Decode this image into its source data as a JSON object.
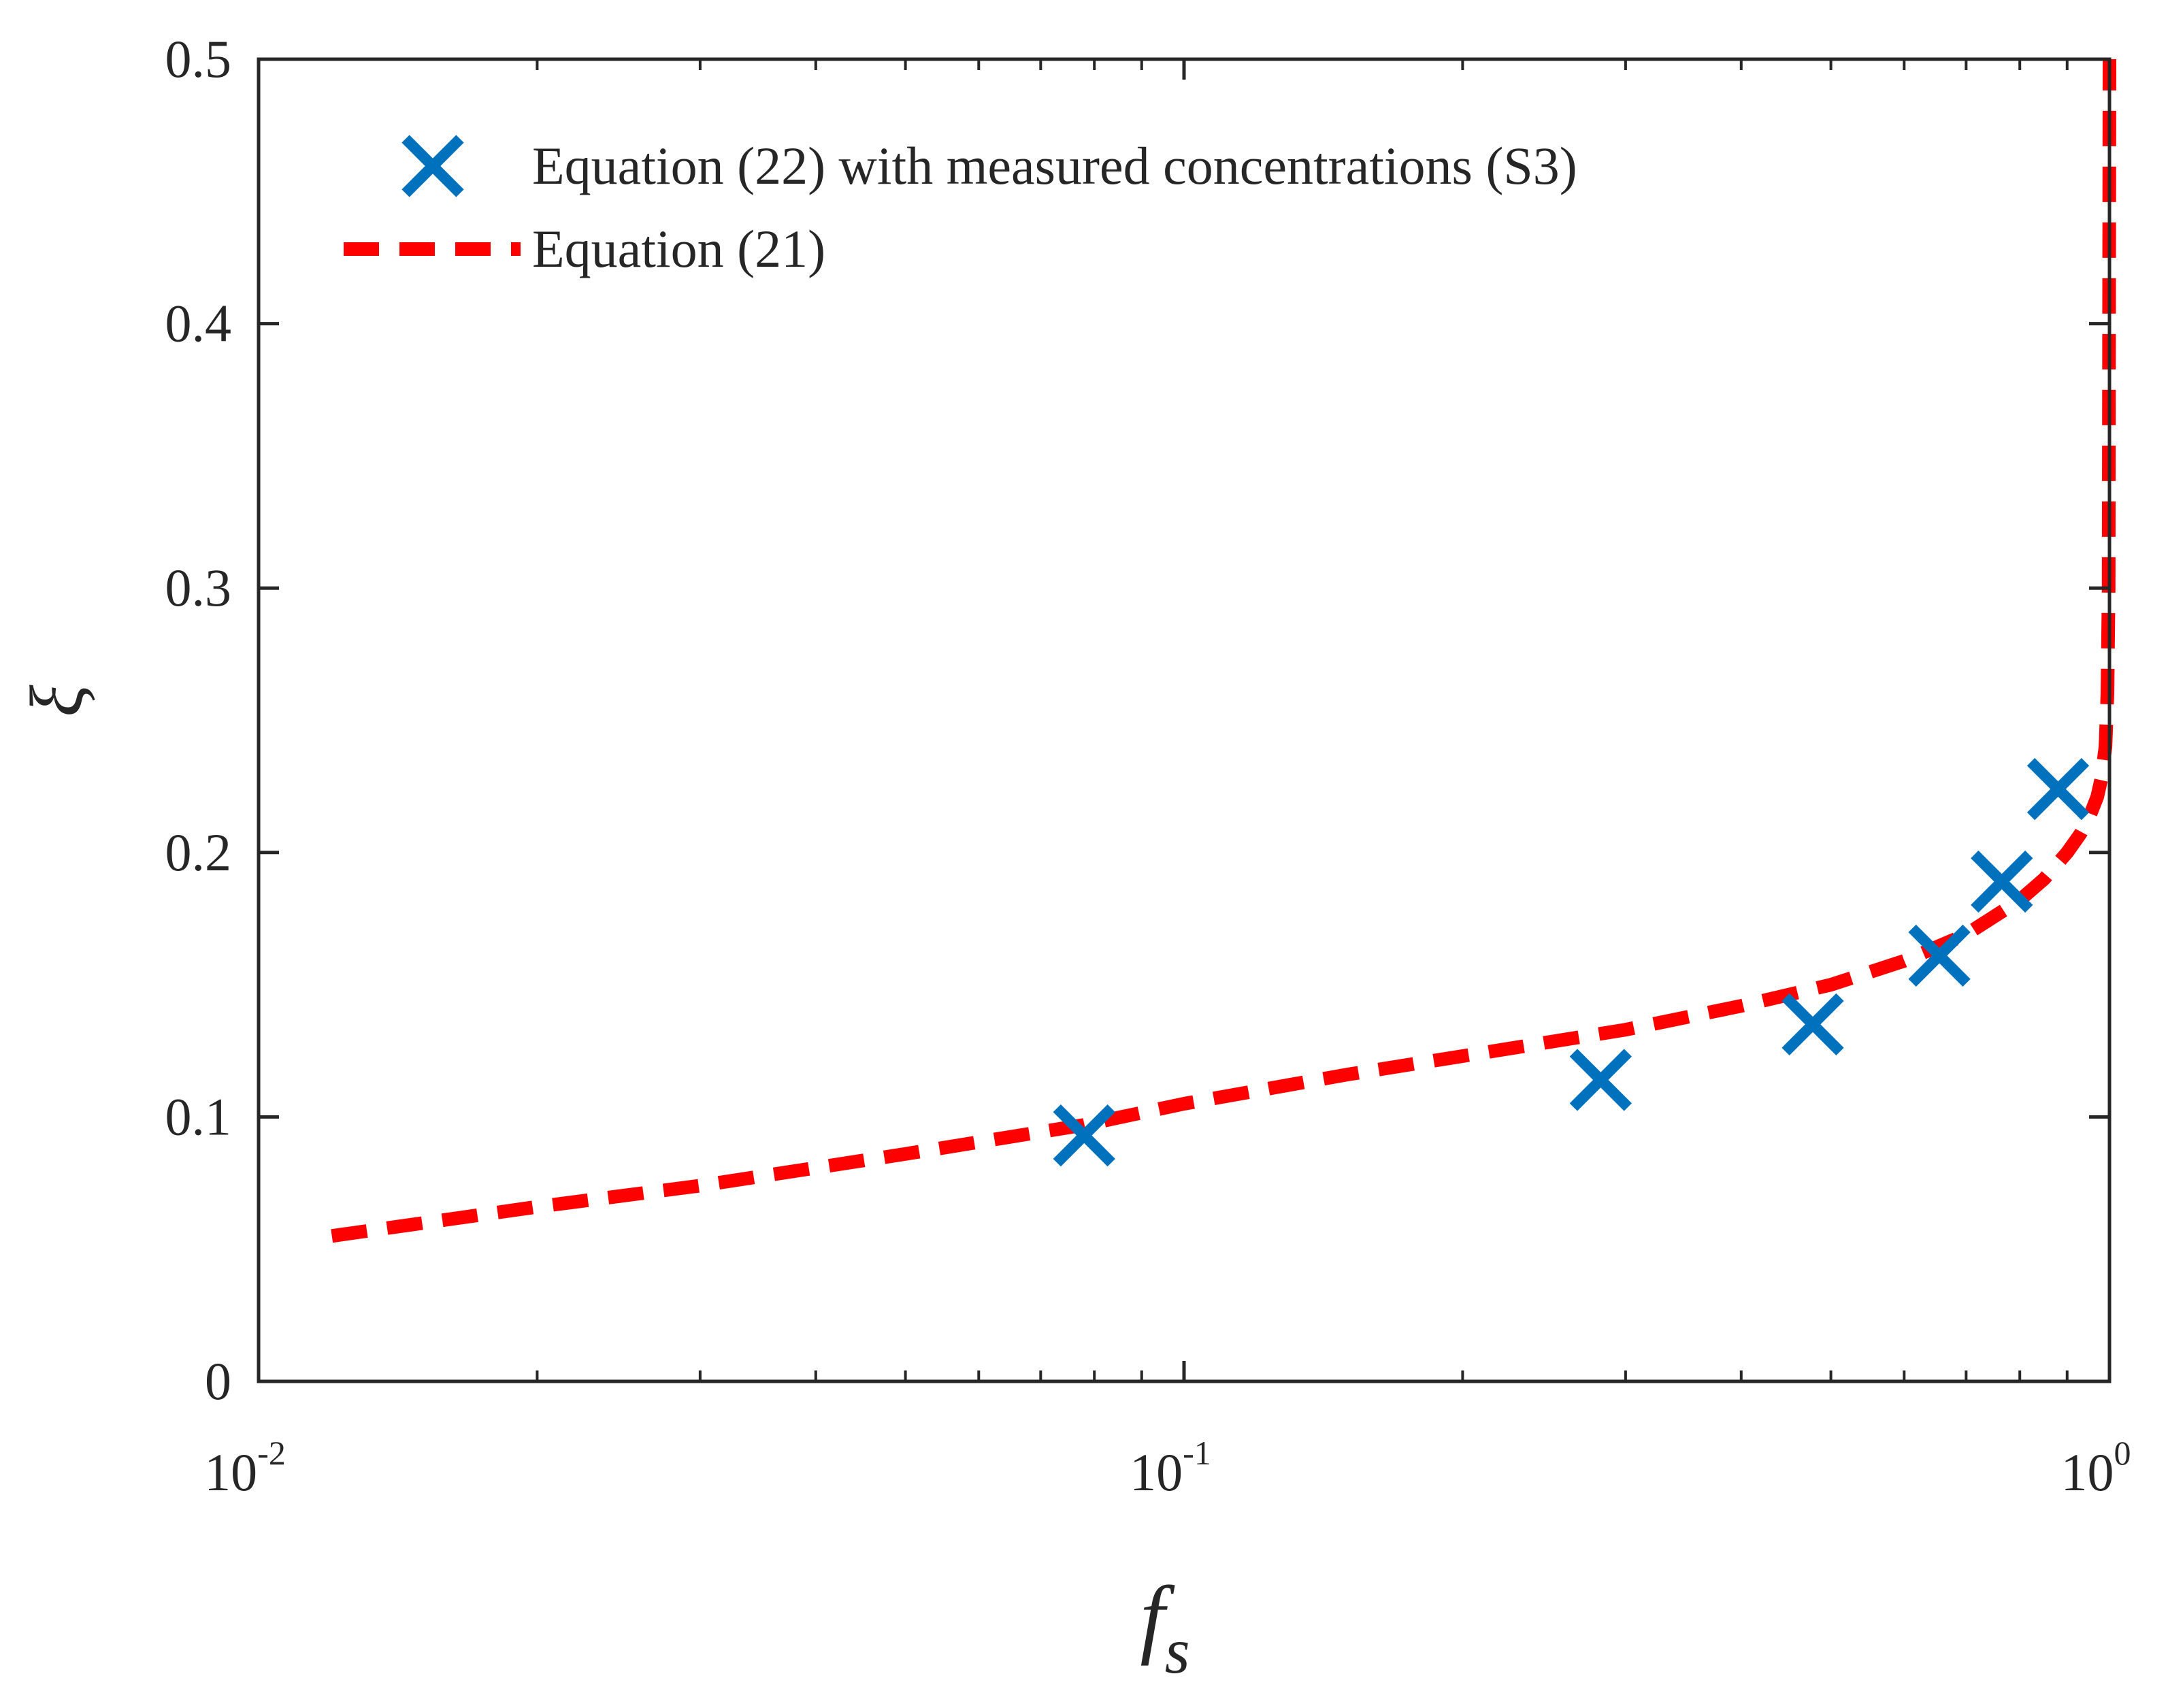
{
  "chart_data": {
    "type": "scatter",
    "title": "",
    "xlabel": "f",
    "xlabel_subscript": "s",
    "ylabel": "ξ",
    "xscale": "log",
    "xlim": [
      0.01,
      1
    ],
    "ylim": [
      0,
      0.5
    ],
    "grid": false,
    "legend_position": "top-left",
    "x_ticks": [
      {
        "base": "10",
        "exp": "-2",
        "value": 0.01
      },
      {
        "base": "10",
        "exp": "-1",
        "value": 0.1
      },
      {
        "base": "10",
        "exp": "0",
        "value": 1
      }
    ],
    "y_ticks": [
      {
        "label": "0",
        "value": 0
      },
      {
        "label": "0.1",
        "value": 0.1
      },
      {
        "label": "0.2",
        "value": 0.2
      },
      {
        "label": "0.3",
        "value": 0.3
      },
      {
        "label": "0.4",
        "value": 0.4
      },
      {
        "label": "0.5",
        "value": 0.5
      }
    ],
    "series": [
      {
        "name": "Equation (22) with measured concentrations (S3)",
        "kind": "markers",
        "marker": "x",
        "color": "#0072BD",
        "x": [
          0.078,
          0.282,
          0.478,
          0.655,
          0.765,
          0.88
        ],
        "y": [
          0.093,
          0.114,
          0.135,
          0.161,
          0.189,
          0.224
        ]
      },
      {
        "name": "Equation (21)",
        "kind": "line",
        "style": "dashed",
        "color": "#FF0000",
        "x": [
          0.012,
          0.02,
          0.03,
          0.05,
          0.078,
          0.1,
          0.15,
          0.2,
          0.3,
          0.4,
          0.5,
          0.6,
          0.7,
          0.8,
          0.85,
          0.9,
          0.93,
          0.95,
          0.97,
          0.98,
          0.99,
          0.995,
          0.998,
          1.0
        ],
        "y": [
          0.055,
          0.066,
          0.074,
          0.086,
          0.097,
          0.105,
          0.116,
          0.123,
          0.133,
          0.142,
          0.15,
          0.159,
          0.169,
          0.182,
          0.19,
          0.2,
          0.207,
          0.213,
          0.221,
          0.228,
          0.24,
          0.26,
          0.3,
          0.5
        ]
      }
    ]
  }
}
